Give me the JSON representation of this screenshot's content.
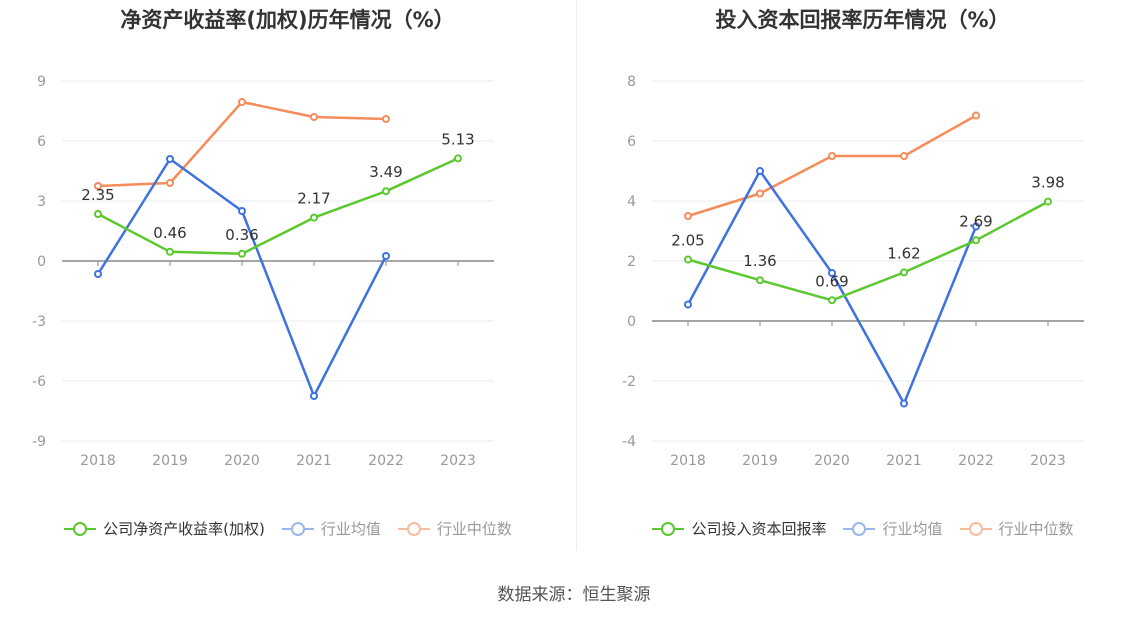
{
  "chart_data": [
    {
      "type": "line",
      "title": "净资产收益率(加权)历年情况（%）",
      "categories": [
        "2018",
        "2019",
        "2020",
        "2021",
        "2022",
        "2023"
      ],
      "ylim": [
        -9,
        9
      ],
      "yticks": [
        -9,
        -6,
        -3,
        0,
        3,
        6,
        9
      ],
      "series": [
        {
          "name": "公司净资产收益率(加权)",
          "color": "#5cc82f",
          "values": [
            2.35,
            0.46,
            0.36,
            2.17,
            3.49,
            5.13
          ],
          "labels": [
            "2.35",
            "0.46",
            "0.36",
            "2.17",
            "3.49",
            "5.13"
          ]
        },
        {
          "name": "行业均值",
          "color": "#3f72e0",
          "values": [
            -0.65,
            5.1,
            2.5,
            -6.75,
            0.25,
            null
          ]
        },
        {
          "name": "行业中位数",
          "color": "#f58c5a",
          "values": [
            3.75,
            3.9,
            7.95,
            7.2,
            7.1,
            null
          ]
        }
      ]
    },
    {
      "type": "line",
      "title": "投入资本回报率历年情况（%）",
      "categories": [
        "2018",
        "2019",
        "2020",
        "2021",
        "2022",
        "2023"
      ],
      "ylim": [
        -4,
        8
      ],
      "yticks": [
        -4,
        -2,
        0,
        2,
        4,
        6,
        8
      ],
      "series": [
        {
          "name": "公司投入资本回报率",
          "color": "#5cc82f",
          "values": [
            2.05,
            1.36,
            0.69,
            1.62,
            2.69,
            3.98
          ],
          "labels": [
            "2.05",
            "1.36",
            "0.69",
            "1.62",
            "2.69",
            "3.98"
          ]
        },
        {
          "name": "行业均值",
          "color": "#3f72e0",
          "values": [
            0.55,
            5.0,
            1.6,
            -2.75,
            3.15,
            null
          ]
        },
        {
          "name": "行业中位数",
          "color": "#f58c5a",
          "values": [
            3.5,
            4.25,
            5.5,
            5.5,
            6.85,
            null
          ]
        }
      ]
    }
  ],
  "footer": {
    "source": "数据来源：恒生聚源"
  }
}
